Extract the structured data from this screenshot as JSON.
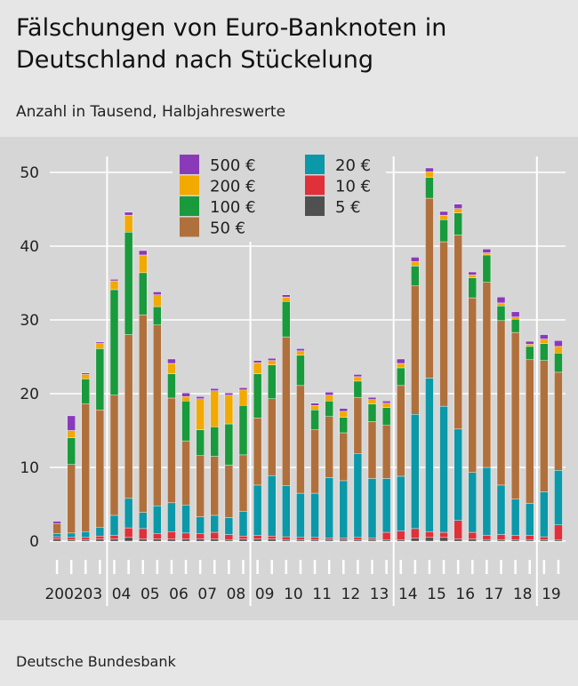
{
  "title": "Fälschungen von Euro-Banknoten in Deutschland nach Stückelung",
  "subtitle": "Anzahl in Tausend, Halbjahreswerte",
  "source": "Deutsche Bundesbank",
  "colors": {
    "5": "#505050",
    "10": "#e0303a",
    "20": "#0b98a8",
    "50": "#b0703c",
    "100": "#199a3c",
    "200": "#f2a900",
    "500": "#8a3ab9",
    "background": "#e6e6e6",
    "panel": "#d6d6d6",
    "grid": "#ffffff"
  },
  "chart_data": {
    "type": "bar",
    "stacked": true,
    "ylim": [
      0,
      50
    ],
    "yticks": [
      0,
      10,
      20,
      30,
      40,
      50
    ],
    "grid": true,
    "legend_position": "top-left",
    "year_labels": [
      "2002",
      "03",
      "04",
      "05",
      "06",
      "07",
      "08",
      "09",
      "10",
      "11",
      "12",
      "13",
      "14",
      "15",
      "16",
      "17",
      "18",
      "19"
    ],
    "categories": [
      "2002 H1",
      "2002 H2",
      "2003 H1",
      "2003 H2",
      "2004 H1",
      "2004 H2",
      "2005 H1",
      "2005 H2",
      "2006 H1",
      "2006 H2",
      "2007 H1",
      "2007 H2",
      "2008 H1",
      "2008 H2",
      "2009 H1",
      "2009 H2",
      "2010 H1",
      "2010 H2",
      "2011 H1",
      "2011 H2",
      "2012 H1",
      "2012 H2",
      "2013 H1",
      "2013 H2",
      "2014 H1",
      "2014 H2",
      "2015 H1",
      "2015 H2",
      "2016 H1",
      "2016 H2",
      "2017 H1",
      "2017 H2",
      "2018 H1",
      "2018 H2",
      "2019 H1",
      "2019 H2"
    ],
    "series": [
      {
        "name": "5 €",
        "key": "5",
        "values": [
          0.3,
          0.2,
          0.2,
          0.3,
          0.3,
          0.5,
          0.3,
          0.3,
          0.3,
          0.3,
          0.3,
          0.3,
          0.2,
          0.3,
          0.3,
          0.3,
          0.2,
          0.2,
          0.2,
          0.2,
          0.2,
          0.2,
          0.2,
          0.2,
          0.2,
          0.4,
          0.5,
          0.5,
          0.3,
          0.3,
          0.2,
          0.2,
          0.2,
          0.2,
          0.2,
          0.2
        ]
      },
      {
        "name": "10 €",
        "key": "10",
        "values": [
          0.3,
          0.3,
          0.3,
          0.4,
          0.5,
          1.3,
          1.4,
          0.7,
          1.0,
          0.8,
          0.7,
          0.9,
          0.7,
          0.4,
          0.5,
          0.4,
          0.4,
          0.3,
          0.3,
          0.2,
          0.2,
          0.3,
          0.2,
          1.0,
          1.2,
          1.3,
          0.8,
          0.7,
          2.5,
          0.9,
          0.6,
          0.7,
          0.6,
          0.6,
          0.4,
          2.0
        ]
      },
      {
        "name": "20 €",
        "key": "20",
        "values": [
          0.4,
          0.6,
          0.8,
          1.2,
          2.7,
          4.0,
          2.2,
          3.8,
          3.9,
          3.8,
          2.3,
          2.3,
          2.3,
          3.3,
          6.8,
          8.2,
          6.9,
          6.0,
          6.0,
          8.2,
          7.8,
          11.4,
          8.1,
          7.3,
          7.4,
          15.5,
          20.8,
          17.1,
          12.4,
          8.1,
          9.2,
          6.7,
          4.9,
          4.3,
          6.1,
          7.4
        ]
      },
      {
        "name": "50 €",
        "key": "50",
        "values": [
          1.4,
          9.3,
          17.3,
          15.9,
          16.3,
          22.2,
          26.8,
          24.5,
          14.2,
          8.7,
          8.3,
          8.0,
          7.1,
          7.7,
          9.1,
          10.4,
          20.2,
          14.6,
          8.6,
          8.3,
          6.5,
          7.6,
          7.7,
          7.2,
          12.3,
          17.4,
          24.4,
          22.3,
          26.3,
          23.7,
          25.1,
          22.3,
          22.6,
          19.5,
          17.8,
          13.3
        ]
      },
      {
        "name": "100 €",
        "key": "100",
        "values": [
          0,
          3.6,
          3.4,
          8.3,
          14.3,
          13.9,
          5.7,
          2.5,
          3.3,
          5.4,
          3.5,
          4.0,
          5.6,
          6.7,
          6.0,
          4.6,
          4.8,
          4.1,
          2.7,
          2.1,
          2.1,
          2.2,
          2.4,
          2.4,
          2.4,
          2.7,
          2.8,
          3.0,
          3.0,
          2.7,
          3.7,
          2.0,
          1.8,
          1.8,
          2.3,
          2.6
        ]
      },
      {
        "name": "200 €",
        "key": "200",
        "values": [
          0,
          1.0,
          0.6,
          0.7,
          1.2,
          2.3,
          2.4,
          1.6,
          1.4,
          0.6,
          4.2,
          4.9,
          3.9,
          2.1,
          1.5,
          0.6,
          0.6,
          0.6,
          0.6,
          0.8,
          0.8,
          0.6,
          0.6,
          0.6,
          0.6,
          0.6,
          0.8,
          0.6,
          0.6,
          0.4,
          0.3,
          0.4,
          0.3,
          0.3,
          0.6,
          0.9
        ]
      },
      {
        "name": "500 €",
        "key": "500",
        "values": [
          0.3,
          2.0,
          0.2,
          0.2,
          0.2,
          0.4,
          0.6,
          0.4,
          0.6,
          0.5,
          0.3,
          0.3,
          0.3,
          0.3,
          0.3,
          0.3,
          0.3,
          0.3,
          0.3,
          0.4,
          0.4,
          0.3,
          0.3,
          0.3,
          0.6,
          0.6,
          0.5,
          0.5,
          0.6,
          0.4,
          0.5,
          0.8,
          0.7,
          0.4,
          0.6,
          0.8
        ]
      }
    ]
  },
  "legend": {
    "col1": [
      {
        "label": "500 €",
        "key": "500"
      },
      {
        "label": "200 €",
        "key": "200"
      },
      {
        "label": "100 €",
        "key": "100"
      },
      {
        "label": "50 €",
        "key": "50"
      }
    ],
    "col2": [
      {
        "label": "20 €",
        "key": "20"
      },
      {
        "label": "10 €",
        "key": "10"
      },
      {
        "label": "5 €",
        "key": "5"
      }
    ]
  }
}
